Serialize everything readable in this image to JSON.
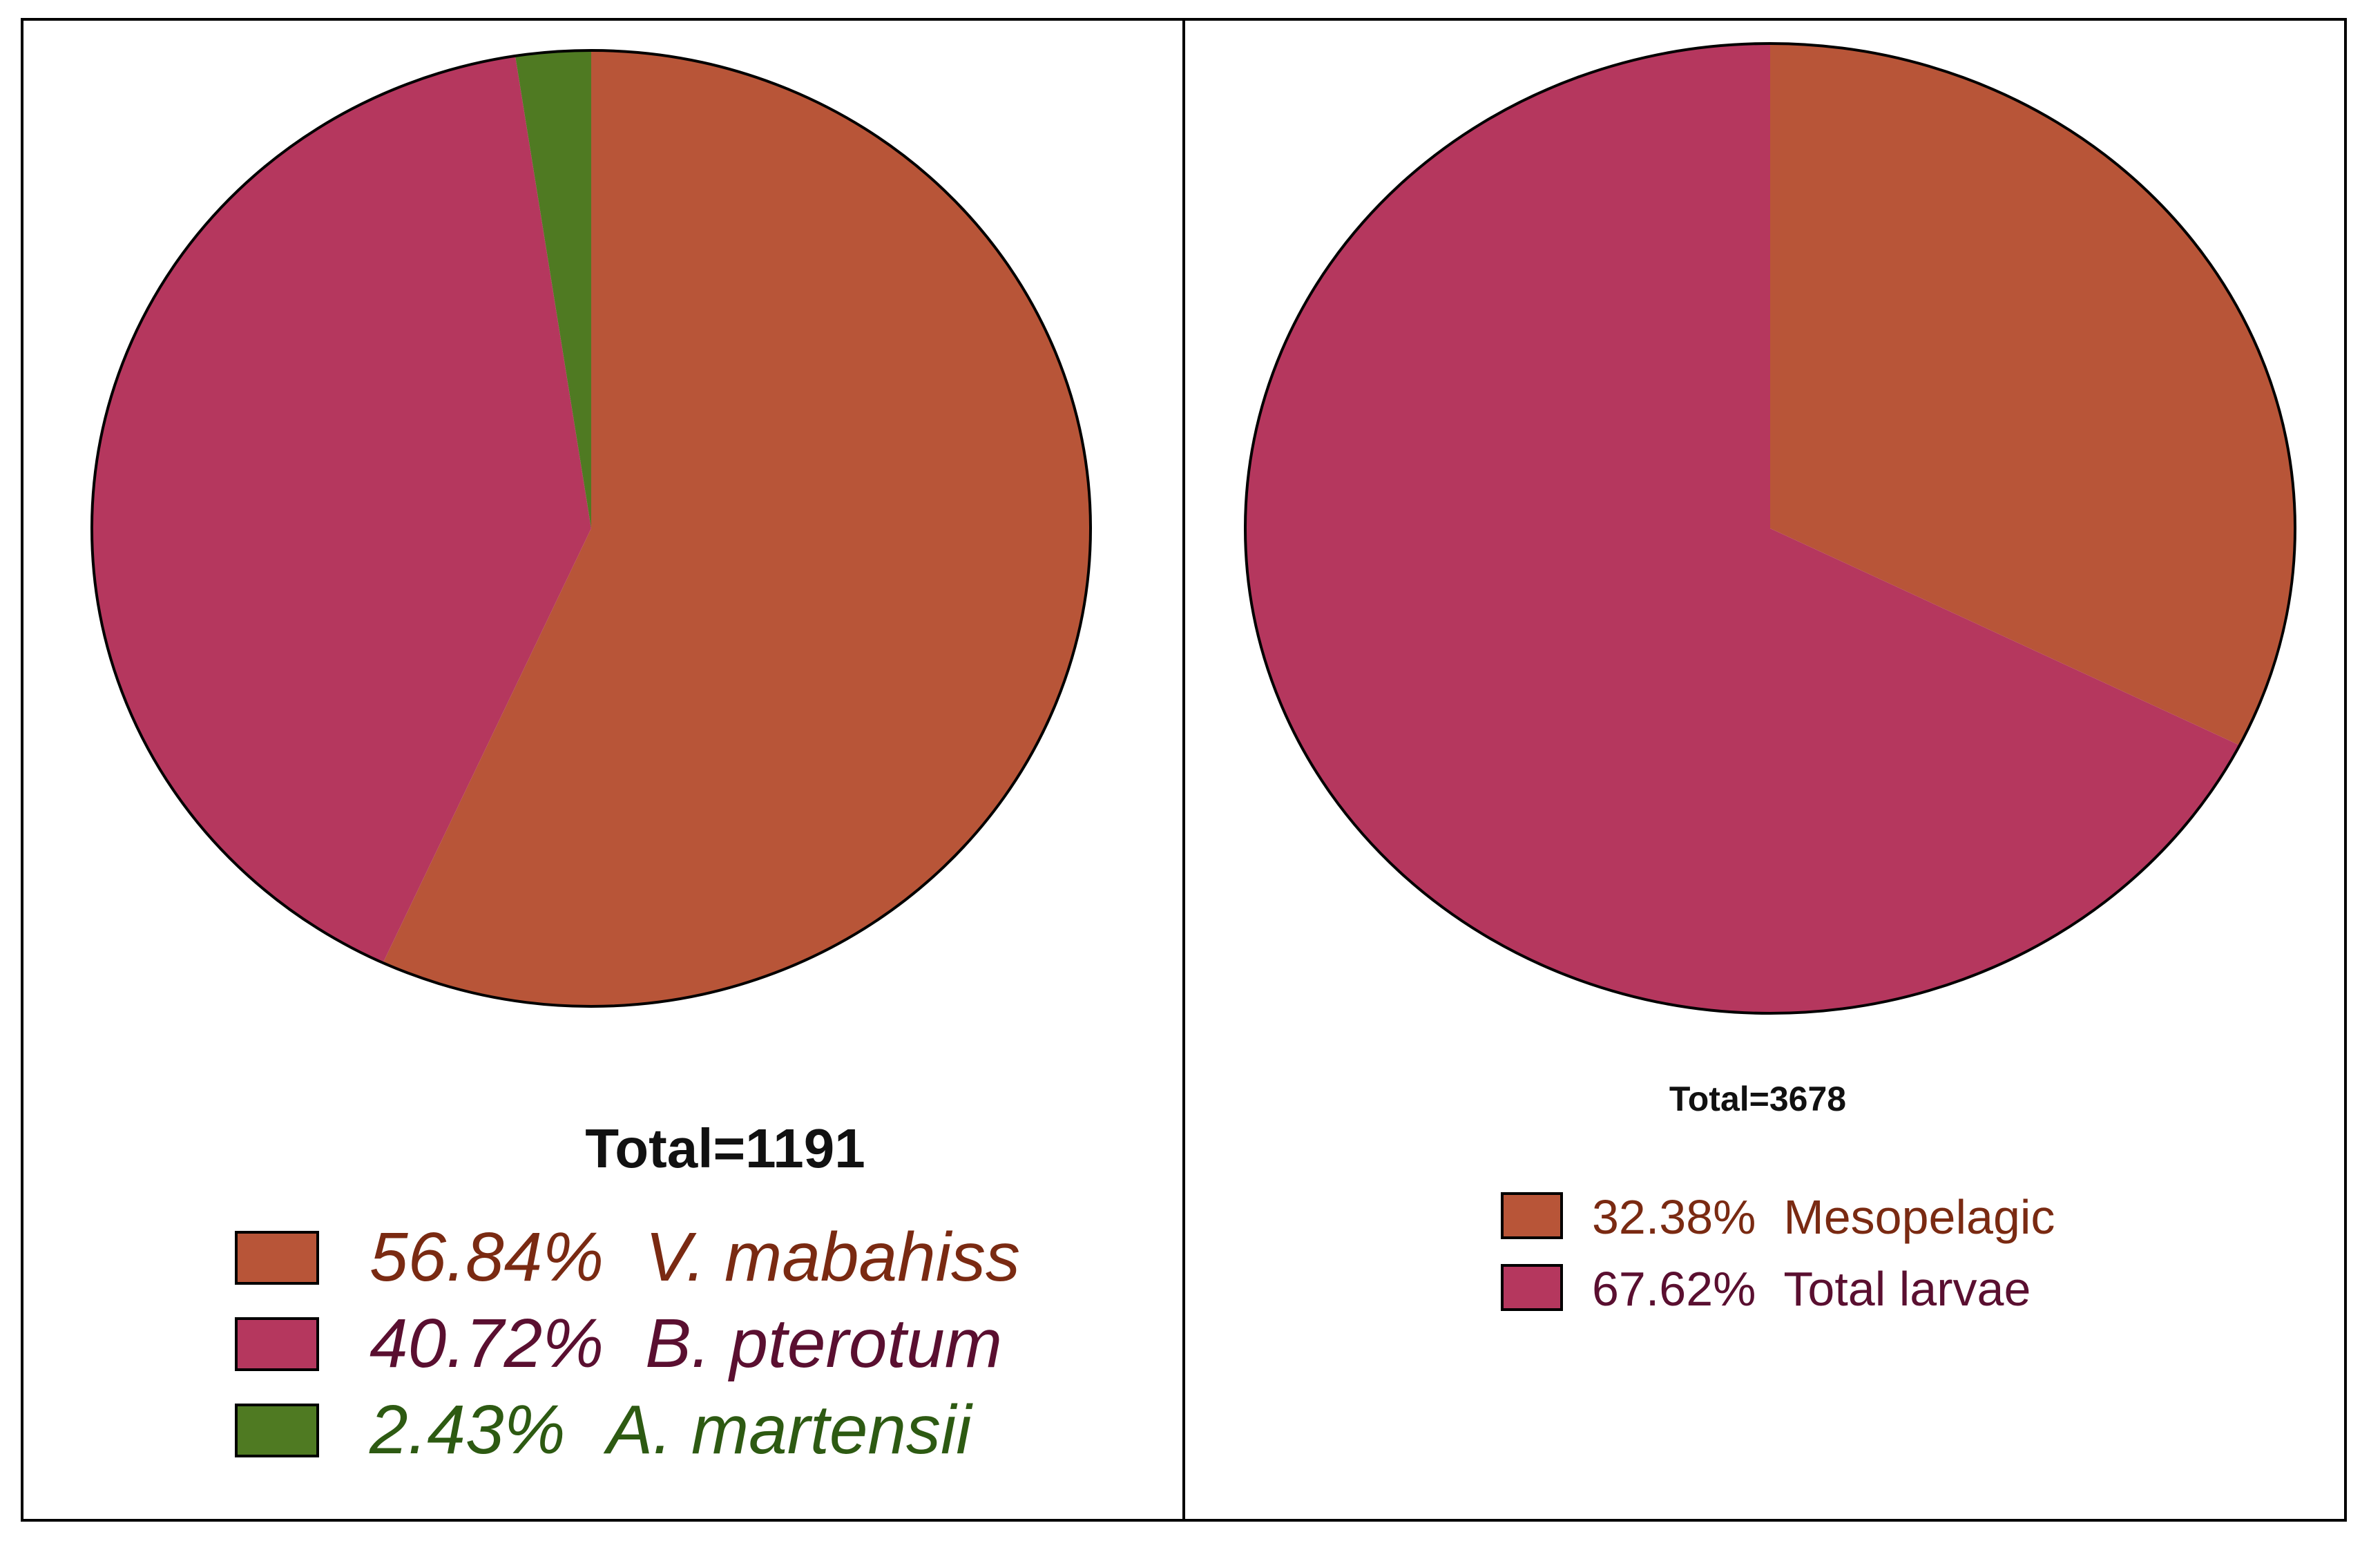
{
  "chart_data": [
    {
      "type": "pie",
      "total_label": "Total=1191",
      "slices": [
        {
          "label": "V. mabahiss",
          "percent_text": "56.84%",
          "value": 56.84,
          "color": "#b85538",
          "text_color": "#7a2a12",
          "italic": true
        },
        {
          "label": "B. pterotum",
          "percent_text": "40.72%",
          "value": 40.72,
          "color": "#b5375e",
          "text_color": "#5a0f30",
          "italic": true
        },
        {
          "label": "A. martensii",
          "percent_text": "2.43%",
          "value": 2.43,
          "color": "#4f7a22",
          "text_color": "#2d5a12",
          "italic": true
        }
      ]
    },
    {
      "type": "pie",
      "total_label": "Total=3678",
      "slices": [
        {
          "label": "Mesopelagic",
          "percent_text": "32.38%",
          "value": 32.38,
          "color": "#b85538",
          "text_color": "#7a2a12",
          "italic": false
        },
        {
          "label": "Total larvae",
          "percent_text": "67.62%",
          "value": 67.62,
          "color": "#b5375e",
          "text_color": "#5a0f30",
          "italic": false
        }
      ]
    }
  ]
}
